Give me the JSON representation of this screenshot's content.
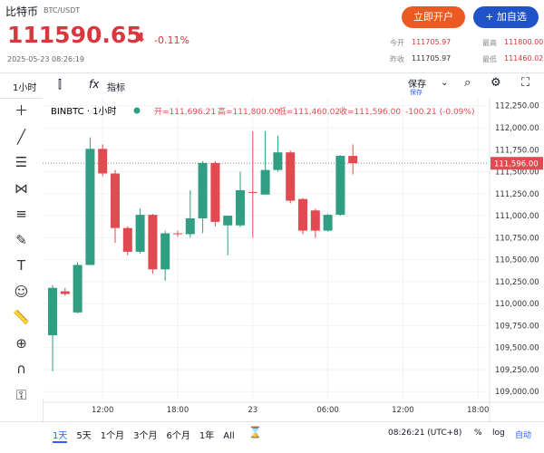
{
  "header": {
    "name": "比特币",
    "pair": "BTC/USDT",
    "price": "111590.65",
    "change": "-0.11%",
    "timestamp": "2025-05-23 08:26:19",
    "buttons": [
      "立即开户",
      "+ 加自选"
    ],
    "stats": [
      {
        "label": "今开",
        "value": "111705.97"
      },
      {
        "label": "最高",
        "value": "111800.00"
      },
      {
        "label": "昨收",
        "value": "111705.97"
      },
      {
        "label": "最低",
        "value": "111460.02"
      }
    ]
  },
  "toolbar": {
    "interval": "1小时",
    "indicators": "指标",
    "save": "保存",
    "save_sub": "保存"
  },
  "legend": {
    "symbol": "BINBTC · 1小时",
    "open": "开=111,696.21",
    "high": "高=111,800.00",
    "low": "低=111,460.02",
    "close": "收=111,596.00",
    "change": "-100.21 (-0.09%)"
  },
  "chart_data": {
    "type": "candlestick",
    "categories": [
      null,
      null,
      null,
      null,
      "12:00",
      null,
      null,
      null,
      null,
      null,
      "18:00",
      null,
      null,
      null,
      null,
      null,
      "23",
      null,
      null,
      null,
      null,
      null,
      "06:00",
      null,
      null,
      null,
      null,
      null,
      "12:00",
      null,
      null,
      null,
      null,
      null,
      "18:00"
    ],
    "open": [
      109640,
      110140,
      109900,
      110440,
      111760,
      111480,
      110860,
      110590,
      111010,
      110390,
      110800,
      110790,
      110970,
      111600,
      110890,
      110890,
      111270,
      111240,
      111520,
      111720,
      111190,
      111060,
      110830,
      111010,
      111680,
      null,
      null,
      null,
      null,
      null,
      null,
      null,
      null,
      null,
      null
    ],
    "high": [
      110210,
      110180,
      110470,
      111890,
      111810,
      111520,
      110880,
      111080,
      111020,
      110830,
      110830,
      111290,
      111620,
      111620,
      111000,
      111500,
      111960,
      111960,
      111910,
      111740,
      111200,
      111080,
      111020,
      111690,
      111810,
      null,
      null,
      null,
      null,
      null,
      null,
      null,
      null,
      null,
      null
    ],
    "low": [
      109230,
      110090,
      109890,
      110440,
      111450,
      110690,
      110550,
      110570,
      110340,
      110260,
      110760,
      110750,
      110800,
      110880,
      110550,
      110870,
      110750,
      111240,
      111500,
      111140,
      110790,
      110750,
      110820,
      111000,
      111470,
      null,
      null,
      null,
      null,
      null,
      null,
      null,
      null,
      null,
      null
    ],
    "close": [
      110180,
      110110,
      110440,
      111760,
      111480,
      110860,
      110590,
      111010,
      110390,
      110800,
      110790,
      110970,
      111600,
      110930,
      111000,
      111290,
      111260,
      111520,
      111720,
      111170,
      110830,
      110830,
      111010,
      111680,
      111596,
      null,
      null,
      null,
      null,
      null,
      null,
      null,
      null,
      null,
      null
    ],
    "up_color": "#2f9e82",
    "down_color": "#e04a50",
    "last_price": 111596,
    "last_price_label": "111,596.00",
    "ylim": [
      108920,
      112340
    ],
    "yticks": [
      {
        "value": 109000,
        "label": "109,000.00"
      },
      {
        "value": 109250,
        "label": "109,250.00"
      },
      {
        "value": 109500,
        "label": "109,500.00"
      },
      {
        "value": 109750,
        "label": "109,750.00"
      },
      {
        "value": 110000,
        "label": "110,000.00"
      },
      {
        "value": 110250,
        "label": "110,250.00"
      },
      {
        "value": 110500,
        "label": "110,500.00"
      },
      {
        "value": 110750,
        "label": "110,750.00"
      },
      {
        "value": 111000,
        "label": "111,000.00"
      },
      {
        "value": 111250,
        "label": "111,250.00"
      },
      {
        "value": 111500,
        "label": "111,500.00"
      },
      {
        "value": 111750,
        "label": "111,750.00"
      },
      {
        "value": 112000,
        "label": "112,000.00"
      },
      {
        "value": 112250,
        "label": "112,250.00"
      }
    ],
    "grid": true
  },
  "footer": {
    "ranges": [
      "1天",
      "5天",
      "1个月",
      "3个月",
      "6个月",
      "1年",
      "All"
    ],
    "time": "08:26:21 (UTC+8)",
    "percent": "%",
    "log": "log",
    "auto": "自动"
  }
}
